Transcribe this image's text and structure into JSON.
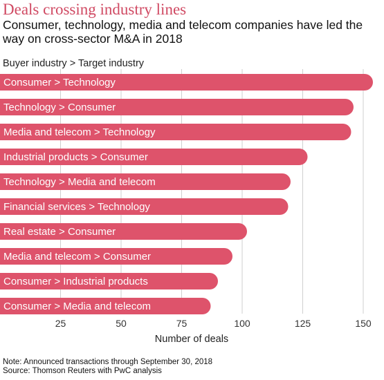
{
  "header": {
    "title": "Deals crossing industry lines",
    "subtitle": "Consumer, technology, media and telecom companies have led the way on cross-sector M&A in 2018",
    "category_caption": "Buyer industry > Target industry"
  },
  "footer": {
    "note": "Note: Announced transactions through September 30, 2018",
    "source": "Source: Thomson Reuters with PwC analysis"
  },
  "colors": {
    "bar": "#de536b",
    "gridline": "#cfcfcf",
    "title": "#d04a63"
  },
  "chart_data": {
    "type": "bar",
    "orientation": "horizontal",
    "title": "Deals crossing industry lines",
    "subtitle": "Consumer, technology, media and telecom companies have led the way on cross-sector M&A in 2018",
    "ylabel": "Buyer industry > Target industry",
    "xlabel": "Number of deals",
    "categories": [
      "Consumer > Technology",
      "Technology > Consumer",
      "Media and telecom > Technology",
      "Industrial products > Consumer",
      "Technology > Media and telecom",
      "Financial services > Technology",
      "Real estate > Consumer",
      "Media and telecom > Consumer",
      "Consumer > Industrial products",
      "Consumer > Media and telecom"
    ],
    "values": [
      154,
      146,
      145,
      127,
      120,
      119,
      102,
      96,
      90,
      87
    ],
    "xlim": [
      0,
      155
    ],
    "xticks": [
      25,
      50,
      75,
      100,
      125,
      150
    ],
    "grid": true,
    "legend": "none"
  }
}
